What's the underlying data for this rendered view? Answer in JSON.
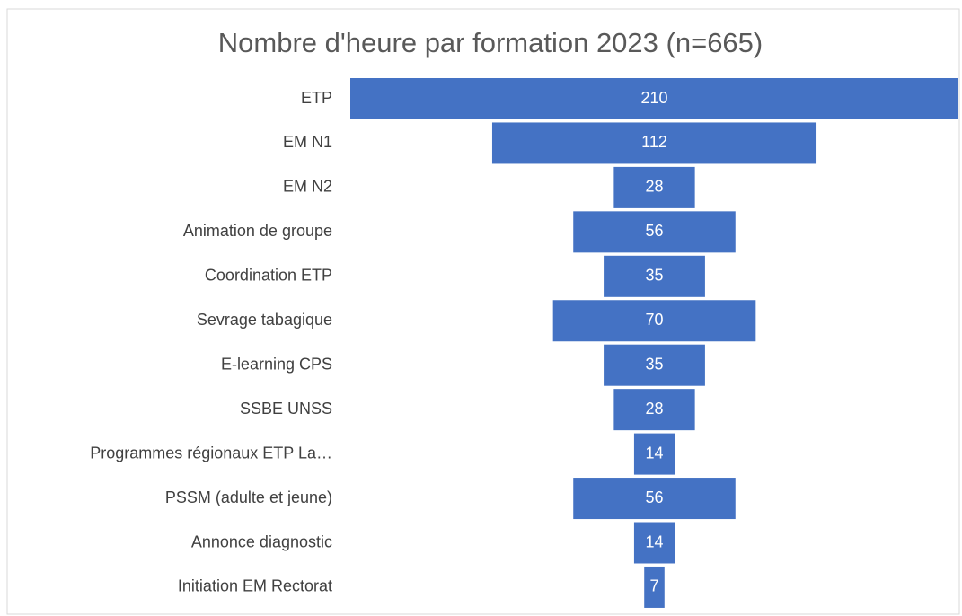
{
  "chart_data": {
    "type": "funnel",
    "title": "Nombre d'heure par formation 2023 (n=665)",
    "categories": [
      "ETP",
      "EM N1",
      "EM N2",
      "Animation de groupe",
      "Coordination ETP",
      "Sevrage tabagique",
      "E-learning CPS",
      "SSBE UNSS",
      "Programmes régionaux ETP La…",
      "PSSM (adulte et jeune)",
      "Annonce diagnostic",
      "Initiation EM Rectorat"
    ],
    "values": [
      210,
      112,
      28,
      56,
      35,
      70,
      35,
      28,
      14,
      56,
      14,
      7
    ],
    "color": "#4472c4"
  }
}
